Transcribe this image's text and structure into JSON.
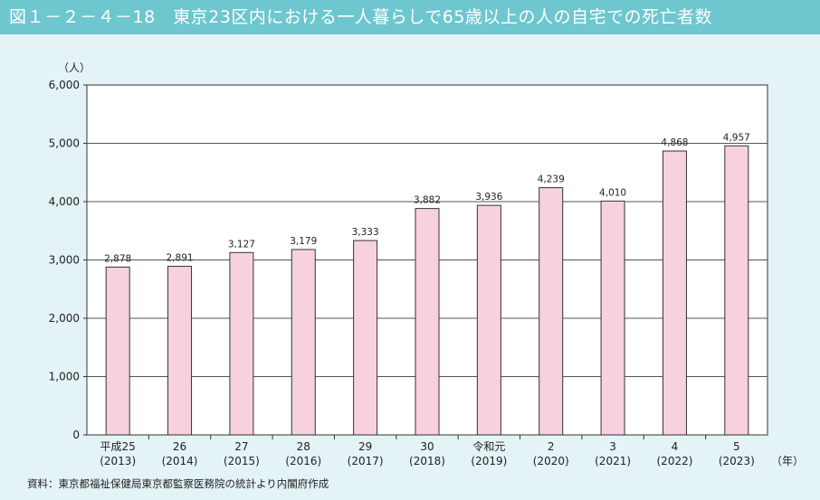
{
  "figure": {
    "title": "図１－２－４－18　東京23区内における一人暮らしで65歳以上の人の自宅での死亡者数",
    "source": "資料：東京都福祉保健局東京都監察医務院の統計より内閣府作成"
  },
  "chart_data": {
    "type": "bar",
    "title": "図１－２－４－18　東京23区内における一人暮らしで65歳以上の人の自宅での死亡者数",
    "ylabel": "（人）",
    "xlabel": "（年）",
    "ylim": [
      0,
      6000
    ],
    "yticks": [
      "0",
      "1,000",
      "2,000",
      "3,000",
      "4,000",
      "5,000",
      "6,000"
    ],
    "grid": true,
    "categories": [
      [
        "平成25",
        "(2013)"
      ],
      [
        "26",
        "(2014)"
      ],
      [
        "27",
        "(2015)"
      ],
      [
        "28",
        "(2016)"
      ],
      [
        "29",
        "(2017)"
      ],
      [
        "30",
        "(2018)"
      ],
      [
        "令和元",
        "(2019)"
      ],
      [
        "2",
        "(2020)"
      ],
      [
        "3",
        "(2021)"
      ],
      [
        "4",
        "(2022)"
      ],
      [
        "5",
        "(2023)"
      ]
    ],
    "values": [
      2878,
      2891,
      3127,
      3179,
      3333,
      3882,
      3936,
      4239,
      4010,
      4868,
      4957
    ],
    "value_labels": [
      "2,878",
      "2,891",
      "3,127",
      "3,179",
      "3,333",
      "3,882",
      "3,936",
      "4,239",
      "4,010",
      "4,868",
      "4,957"
    ],
    "colors": {
      "bar": "#f7d1e0",
      "bar_stroke": "#333333",
      "grid": "#555555"
    }
  }
}
